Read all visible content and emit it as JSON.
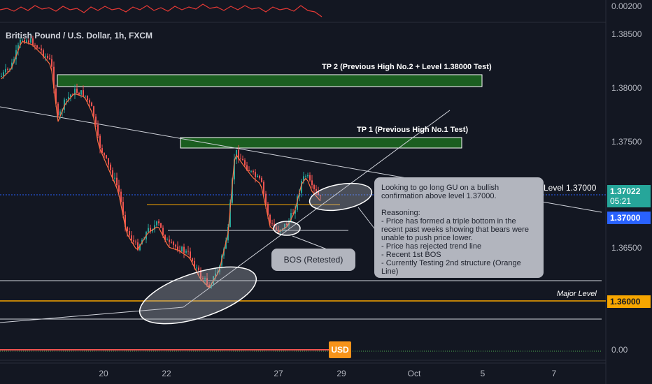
{
  "symbol": {
    "title": "British Pound / U.S. Dollar, 1h, FXCM"
  },
  "price_axis": {
    "top_pane_label": "0.00200",
    "labels": [
      "1.38500",
      "1.38000",
      "1.37500",
      "1.36500"
    ],
    "bottom_pane_label": "0.00"
  },
  "badges": {
    "current_price": "1.37022",
    "countdown": "05:21",
    "level_1_37": "1.37000",
    "level_1_36": "1.36000",
    "usd": "USD"
  },
  "time_axis": {
    "labels": [
      "20",
      "22",
      "27",
      "29",
      "Oct",
      "5",
      "7"
    ]
  },
  "annotations": {
    "tp2": "TP 2 (Previous High No.2 + Level 1.38000 Test)",
    "tp1": "TP 1 (Previous High No.1 Test)",
    "level_137": "Level 1.37000",
    "major_level": "Major Level",
    "bos": "BOS (Retested)",
    "note": "Looking to go long GU on a bullish confirmation above level 1.37000.\n\nReasoning:\n- Price has formed a triple bottom in the recent past weeks showing that bears were unable to push price lower.\n- Price has rejected trend line\n- Recent 1st BOS\n- Currently Testing 2nd structure (Orange Line)"
  },
  "colors": {
    "background": "#131722",
    "bull": "#26a69a",
    "bear": "#ef5350",
    "tp_zone": "#1b5e20",
    "orange_level": "#f7a600",
    "blue_level": "#2962ff"
  }
}
